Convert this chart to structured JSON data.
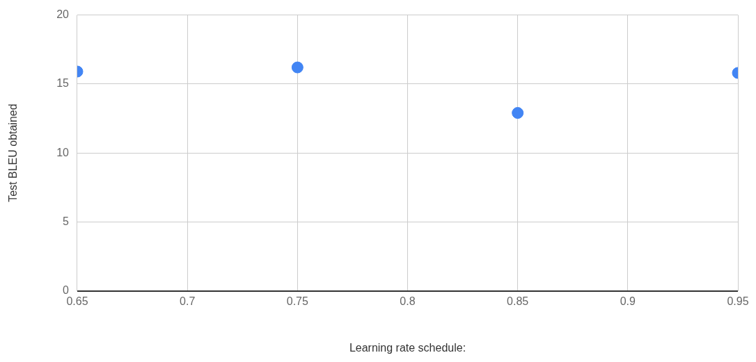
{
  "chart_data": {
    "type": "scatter",
    "xlabel": "Learning rate schedule:",
    "ylabel": "Test BLEU obtained",
    "x": [
      0.65,
      0.75,
      0.85,
      0.95
    ],
    "series": [
      {
        "color": "#4285f4",
        "values": [
          15.9,
          16.2,
          12.9,
          15.8
        ]
      }
    ],
    "xlim": [
      0.65,
      0.95
    ],
    "xticks": [
      0.65,
      0.7,
      0.75,
      0.8,
      0.85,
      0.9,
      0.95
    ],
    "ylim": [
      0,
      20
    ],
    "yticks": [
      0,
      5,
      10,
      15,
      20
    ],
    "grid": true,
    "legend": false,
    "marker": "circle"
  }
}
